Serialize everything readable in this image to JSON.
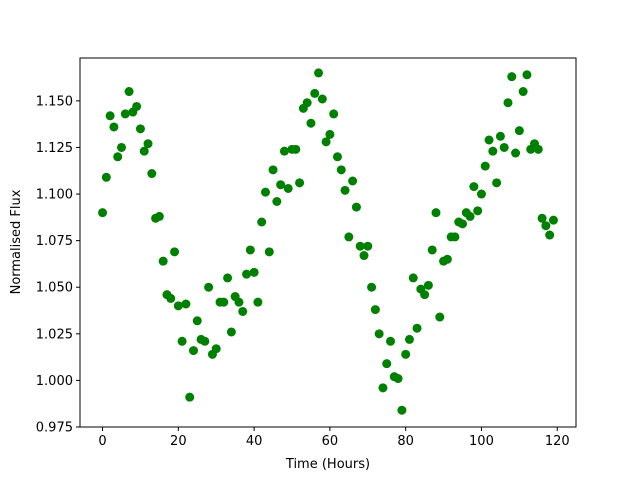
{
  "chart_data": {
    "type": "scatter",
    "xlabel": "Time (Hours)",
    "ylabel": "Normalised Flux",
    "color": "#008000",
    "x": [
      0,
      1,
      2,
      3,
      4,
      5,
      6,
      7,
      8,
      9,
      10,
      11,
      12,
      13,
      14,
      15,
      16,
      17,
      18,
      19,
      20,
      21,
      22,
      23,
      24,
      25,
      26,
      27,
      28,
      29,
      30,
      31,
      32,
      33,
      34,
      35,
      36,
      37,
      38,
      39,
      40,
      41,
      42,
      43,
      44,
      45,
      46,
      47,
      48,
      49,
      50,
      51,
      52,
      53,
      54,
      55,
      56,
      57,
      58,
      59,
      60,
      61,
      62,
      63,
      64,
      65,
      66,
      67,
      68,
      69,
      70,
      71,
      72,
      73,
      74,
      75,
      76,
      77,
      78,
      79,
      80,
      81,
      82,
      83,
      84,
      85,
      86,
      87,
      88,
      89,
      90,
      91,
      92,
      93,
      94,
      95,
      96,
      97,
      98,
      99,
      100,
      101,
      102,
      103,
      104,
      105,
      106,
      107,
      108,
      109,
      110,
      111,
      112,
      113,
      114,
      115,
      116,
      117,
      118,
      119
    ],
    "values": [
      1.09,
      1.109,
      1.142,
      1.136,
      1.12,
      1.125,
      1.143,
      1.155,
      1.144,
      1.147,
      1.135,
      1.123,
      1.127,
      1.111,
      1.087,
      1.088,
      1.064,
      1.046,
      1.044,
      1.069,
      1.04,
      1.021,
      1.041,
      0.991,
      1.016,
      1.032,
      1.022,
      1.021,
      1.05,
      1.014,
      1.017,
      1.042,
      1.042,
      1.055,
      1.026,
      1.045,
      1.042,
      1.037,
      1.057,
      1.07,
      1.058,
      1.042,
      1.085,
      1.101,
      1.069,
      1.113,
      1.096,
      1.105,
      1.123,
      1.103,
      1.124,
      1.124,
      1.106,
      1.146,
      1.149,
      1.138,
      1.154,
      1.165,
      1.151,
      1.128,
      1.132,
      1.143,
      1.12,
      1.113,
      1.102,
      1.077,
      1.107,
      1.093,
      1.072,
      1.067,
      1.072,
      1.05,
      1.038,
      1.025,
      0.996,
      1.009,
      1.021,
      1.002,
      1.001,
      0.984,
      1.014,
      1.022,
      1.055,
      1.028,
      1.049,
      1.046,
      1.051,
      1.07,
      1.09,
      1.034,
      1.064,
      1.065,
      1.077,
      1.077,
      1.085,
      1.084,
      1.09,
      1.088,
      1.104,
      1.091,
      1.1,
      1.115,
      1.129,
      1.123,
      1.106,
      1.131,
      1.125,
      1.149,
      1.163,
      1.122,
      1.134,
      1.155,
      1.164,
      1.124,
      1.127,
      1.124,
      1.087,
      1.083,
      1.078,
      1.086
    ],
    "xlim": [
      -5.95,
      124.95
    ],
    "xticks": [
      0,
      20,
      40,
      60,
      80,
      100,
      120
    ],
    "ylim": [
      0.975,
      1.173
    ],
    "yticks": [
      {
        "value": 0.975,
        "label": "0.975"
      },
      {
        "value": 1.0,
        "label": "1.000"
      },
      {
        "value": 1.025,
        "label": "1.025"
      },
      {
        "value": 1.05,
        "label": "1.050"
      },
      {
        "value": 1.075,
        "label": "1.075"
      },
      {
        "value": 1.1,
        "label": "1.100"
      },
      {
        "value": 1.125,
        "label": "1.125"
      },
      {
        "value": 1.15,
        "label": "1.150"
      }
    ]
  }
}
